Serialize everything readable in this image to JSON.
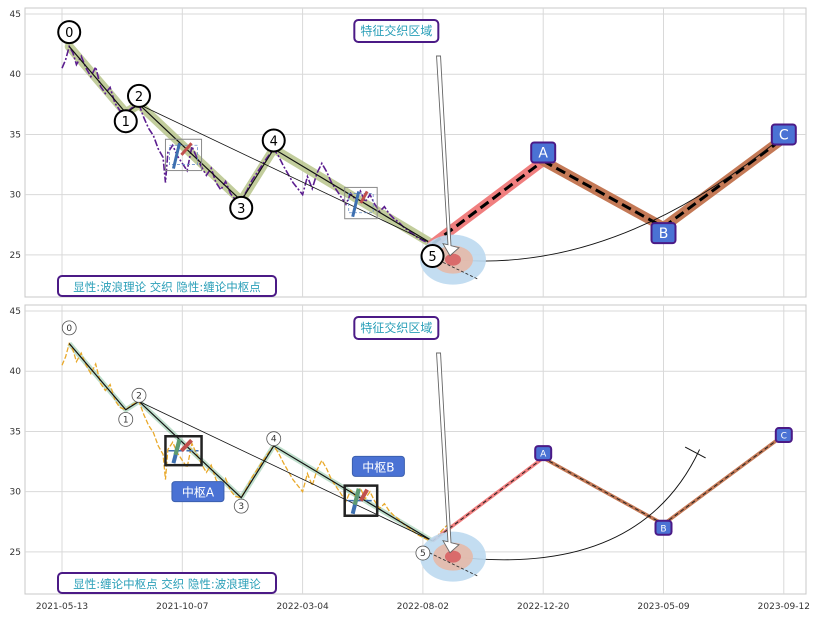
{
  "chart_data": [
    {
      "type": "line",
      "panel": "top",
      "ylim": [
        21.5,
        45.5
      ],
      "yticks": [
        25,
        30,
        35,
        40,
        45
      ],
      "grid": true,
      "legend": "none",
      "annotation_box": "特征交织区域",
      "corner_label": "显性:波浪理论 交织 隐性:缠论中枢点",
      "wave_labels": [
        {
          "text": "0",
          "x": 0.06,
          "y": 43.5
        },
        {
          "text": "1",
          "x": 0.53,
          "y": 36.1
        },
        {
          "text": "2",
          "x": 0.64,
          "y": 38.2
        },
        {
          "text": "3",
          "x": 1.49,
          "y": 28.9
        },
        {
          "text": "4",
          "x": 1.76,
          "y": 34.5
        },
        {
          "text": "5",
          "x": 3.08,
          "y": 24.9
        }
      ],
      "forecast_labels": [
        {
          "text": "A",
          "x": 4.0,
          "y": 33.5
        },
        {
          "text": "B",
          "x": 5.0,
          "y": 26.8
        },
        {
          "text": "C",
          "x": 6.0,
          "y": 35.0
        }
      ],
      "wave_path": [
        [
          0.06,
          42.3
        ],
        [
          0.53,
          36.8
        ],
        [
          0.64,
          37.5
        ],
        [
          1.49,
          29.5
        ],
        [
          1.76,
          33.8
        ],
        [
          3.08,
          25.9
        ]
      ],
      "forecast_path": [
        [
          3.08,
          25.9
        ],
        [
          4.0,
          32.8
        ],
        [
          5.0,
          27.3
        ],
        [
          6.0,
          34.7
        ]
      ],
      "price_series": [
        [
          0.0,
          40.5
        ],
        [
          0.03,
          41.2
        ],
        [
          0.06,
          42.3
        ],
        [
          0.09,
          41.8
        ],
        [
          0.12,
          40.8
        ],
        [
          0.16,
          41.5
        ],
        [
          0.2,
          40.5
        ],
        [
          0.24,
          39.8
        ],
        [
          0.28,
          40.6
        ],
        [
          0.32,
          39.0
        ],
        [
          0.36,
          38.4
        ],
        [
          0.4,
          38.9
        ],
        [
          0.44,
          37.6
        ],
        [
          0.48,
          37.0
        ],
        [
          0.53,
          36.8
        ],
        [
          0.58,
          37.2
        ],
        [
          0.64,
          37.5
        ],
        [
          0.68,
          36.4
        ],
        [
          0.72,
          35.5
        ],
        [
          0.76,
          34.9
        ],
        [
          0.8,
          33.8
        ],
        [
          0.84,
          33.1
        ],
        [
          0.86,
          31.0
        ],
        [
          0.88,
          33.5
        ],
        [
          0.92,
          34.1
        ],
        [
          0.96,
          33.2
        ],
        [
          1.0,
          32.6
        ],
        [
          1.04,
          32.0
        ],
        [
          1.08,
          34.0
        ],
        [
          1.12,
          33.1
        ],
        [
          1.16,
          32.3
        ],
        [
          1.2,
          31.6
        ],
        [
          1.24,
          32.2
        ],
        [
          1.28,
          31.0
        ],
        [
          1.32,
          30.4
        ],
        [
          1.36,
          31.1
        ],
        [
          1.4,
          30.1
        ],
        [
          1.44,
          29.6
        ],
        [
          1.49,
          29.5
        ],
        [
          1.54,
          30.4
        ],
        [
          1.58,
          31.2
        ],
        [
          1.62,
          31.8
        ],
        [
          1.66,
          32.4
        ],
        [
          1.7,
          33.0
        ],
        [
          1.76,
          33.8
        ],
        [
          1.8,
          33.2
        ],
        [
          1.84,
          32.4
        ],
        [
          1.88,
          31.7
        ],
        [
          1.92,
          31.0
        ],
        [
          1.96,
          30.5
        ],
        [
          2.0,
          30.0
        ],
        [
          2.04,
          31.5
        ],
        [
          2.08,
          30.5
        ],
        [
          2.12,
          31.8
        ],
        [
          2.16,
          32.6
        ],
        [
          2.2,
          31.9
        ],
        [
          2.24,
          31.0
        ],
        [
          2.28,
          30.4
        ],
        [
          2.32,
          29.8
        ],
        [
          2.36,
          29.2
        ],
        [
          2.4,
          30.1
        ],
        [
          2.44,
          29.6
        ],
        [
          2.48,
          30.3
        ],
        [
          2.52,
          29.4
        ],
        [
          2.56,
          30.0
        ],
        [
          2.6,
          29.2
        ],
        [
          2.64,
          28.6
        ],
        [
          2.68,
          29.0
        ],
        [
          2.72,
          28.4
        ],
        [
          2.76,
          28.0
        ],
        [
          2.8,
          27.7
        ],
        [
          2.84,
          27.3
        ],
        [
          2.88,
          27.0
        ],
        [
          2.92,
          26.7
        ],
        [
          2.96,
          26.4
        ],
        [
          3.0,
          26.2
        ],
        [
          3.04,
          26.0
        ],
        [
          3.08,
          25.9
        ],
        [
          3.12,
          26.3
        ],
        [
          3.16,
          26.8
        ],
        [
          3.2,
          27.2
        ]
      ],
      "centers": [
        {
          "x0": 0.86,
          "x1": 1.16,
          "y0": 32.0,
          "y1": 34.6
        },
        {
          "x0": 2.35,
          "x1": 2.62,
          "y0": 28.0,
          "y1": 30.6
        }
      ]
    },
    {
      "type": "line",
      "panel": "bottom",
      "ylim": [
        21.5,
        45.5
      ],
      "yticks": [
        25,
        30,
        35,
        40,
        45
      ],
      "xticks": [
        "2021-05-13",
        "2021-10-07",
        "2022-03-04",
        "2022-08-02",
        "2022-12-20",
        "2023-05-09",
        "2023-09-12"
      ],
      "grid": true,
      "legend": "none",
      "annotation_box": "特征交织区域",
      "corner_label": "显性:缠论中枢点 交织 隐性:波浪理论",
      "center_labels": [
        {
          "text": "中枢A",
          "x": 1.13,
          "y": 30.0
        },
        {
          "text": "中枢B",
          "x": 2.63,
          "y": 32.1
        }
      ],
      "wave_labels": [
        {
          "text": "0",
          "x": 0.06,
          "y": 43.6
        },
        {
          "text": "1",
          "x": 0.53,
          "y": 36.0
        },
        {
          "text": "2",
          "x": 0.64,
          "y": 38.0
        },
        {
          "text": "3",
          "x": 1.49,
          "y": 28.8
        },
        {
          "text": "4",
          "x": 1.76,
          "y": 34.4
        },
        {
          "text": "5",
          "x": 3.0,
          "y": 24.9
        }
      ],
      "forecast_labels": [
        {
          "text": "A",
          "x": 4.0,
          "y": 33.2
        },
        {
          "text": "B",
          "x": 5.0,
          "y": 27.0
        },
        {
          "text": "C",
          "x": 6.0,
          "y": 34.7
        }
      ],
      "wave_path": [
        [
          0.06,
          42.3
        ],
        [
          0.53,
          36.8
        ],
        [
          0.64,
          37.5
        ],
        [
          1.49,
          29.5
        ],
        [
          1.76,
          33.8
        ],
        [
          3.08,
          25.9
        ]
      ],
      "forecast_path": [
        [
          3.08,
          25.9
        ],
        [
          4.0,
          32.8
        ],
        [
          5.0,
          27.3
        ],
        [
          6.0,
          34.7
        ]
      ],
      "price_series": [
        [
          0.0,
          40.5
        ],
        [
          0.03,
          41.2
        ],
        [
          0.06,
          42.3
        ],
        [
          0.09,
          41.8
        ],
        [
          0.12,
          40.8
        ],
        [
          0.16,
          41.5
        ],
        [
          0.2,
          40.5
        ],
        [
          0.24,
          39.8
        ],
        [
          0.28,
          40.6
        ],
        [
          0.32,
          39.0
        ],
        [
          0.36,
          38.4
        ],
        [
          0.4,
          38.9
        ],
        [
          0.44,
          37.6
        ],
        [
          0.48,
          37.0
        ],
        [
          0.53,
          36.8
        ],
        [
          0.58,
          37.2
        ],
        [
          0.64,
          37.5
        ],
        [
          0.68,
          36.4
        ],
        [
          0.72,
          35.5
        ],
        [
          0.76,
          34.9
        ],
        [
          0.8,
          33.8
        ],
        [
          0.84,
          33.1
        ],
        [
          0.86,
          31.0
        ],
        [
          0.88,
          33.5
        ],
        [
          0.92,
          34.1
        ],
        [
          0.96,
          33.2
        ],
        [
          1.0,
          32.6
        ],
        [
          1.04,
          32.0
        ],
        [
          1.08,
          34.0
        ],
        [
          1.12,
          33.1
        ],
        [
          1.16,
          32.3
        ],
        [
          1.2,
          31.6
        ],
        [
          1.24,
          32.2
        ],
        [
          1.28,
          31.0
        ],
        [
          1.32,
          30.4
        ],
        [
          1.36,
          31.1
        ],
        [
          1.4,
          30.1
        ],
        [
          1.44,
          29.6
        ],
        [
          1.49,
          29.5
        ],
        [
          1.54,
          30.4
        ],
        [
          1.58,
          31.2
        ],
        [
          1.62,
          31.8
        ],
        [
          1.66,
          32.4
        ],
        [
          1.7,
          33.0
        ],
        [
          1.76,
          33.8
        ],
        [
          1.8,
          33.2
        ],
        [
          1.84,
          32.4
        ],
        [
          1.88,
          31.7
        ],
        [
          1.92,
          31.0
        ],
        [
          1.96,
          30.5
        ],
        [
          2.0,
          30.0
        ],
        [
          2.04,
          31.5
        ],
        [
          2.08,
          30.5
        ],
        [
          2.12,
          31.8
        ],
        [
          2.16,
          32.6
        ],
        [
          2.2,
          31.9
        ],
        [
          2.24,
          31.0
        ],
        [
          2.28,
          30.4
        ],
        [
          2.32,
          29.8
        ],
        [
          2.36,
          29.2
        ],
        [
          2.4,
          30.1
        ],
        [
          2.44,
          29.6
        ],
        [
          2.48,
          30.3
        ],
        [
          2.52,
          29.4
        ],
        [
          2.56,
          30.0
        ],
        [
          2.6,
          29.2
        ],
        [
          2.64,
          28.6
        ],
        [
          2.68,
          29.0
        ],
        [
          2.72,
          28.4
        ],
        [
          2.76,
          28.0
        ],
        [
          2.8,
          27.7
        ],
        [
          2.84,
          27.3
        ],
        [
          2.88,
          27.0
        ],
        [
          2.92,
          26.7
        ],
        [
          2.96,
          26.4
        ],
        [
          3.0,
          26.2
        ],
        [
          3.04,
          26.0
        ],
        [
          3.08,
          25.9
        ],
        [
          3.12,
          26.3
        ],
        [
          3.16,
          26.8
        ],
        [
          3.2,
          27.2
        ]
      ],
      "centers": [
        {
          "x0": 0.86,
          "x1": 1.16,
          "y0": 32.2,
          "y1": 34.6
        },
        {
          "x0": 2.35,
          "x1": 2.62,
          "y0": 28.0,
          "y1": 30.5
        }
      ]
    }
  ],
  "colors": {
    "grid": "#d9d9d9",
    "price_top": "#5b1d8f",
    "price_bottom": "#e9a92a",
    "wave_band": "#b7c48b",
    "forecast_red": "#f07f7f",
    "forecast_brown": "#c47956",
    "label_fill": "#4a72d4",
    "label_border": "#4b1a86",
    "annot_text": "#2a9fb8",
    "annot_border": "#4b1a86",
    "center_box": "#222222",
    "blue_seg": "#3d6fb0",
    "red_seg": "#c0504d",
    "green_seg": "#5e9b71",
    "halo_outer": "#bcd9f0",
    "halo_mid": "#e6b9a8",
    "halo_inner": "#d96b6b"
  }
}
